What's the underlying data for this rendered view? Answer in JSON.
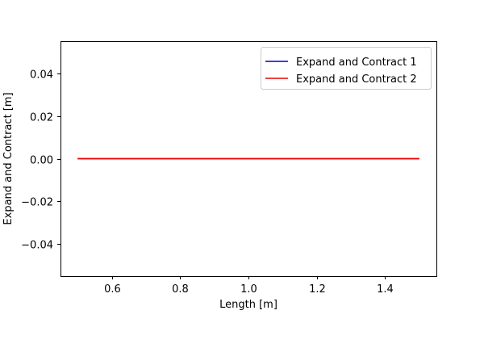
{
  "chart_data": {
    "type": "line",
    "title": "",
    "xlabel": "Length [m]",
    "ylabel": "Expand and Contract [m]",
    "xlim": [
      0.45,
      1.55
    ],
    "ylim": [
      -0.055,
      0.055
    ],
    "xticks": [
      0.6,
      0.8,
      1.0,
      1.2,
      1.4
    ],
    "xtick_labels": [
      "0.6",
      "0.8",
      "1.0",
      "1.2",
      "1.4"
    ],
    "yticks": [
      0.04,
      0.02,
      0.0,
      -0.02,
      -0.04
    ],
    "ytick_labels": [
      "0.04",
      "0.02",
      "0.00",
      "−0.02",
      "−0.04"
    ],
    "grid": false,
    "legend_position": "top-right",
    "series": [
      {
        "name": "Expand and Contract 1",
        "color": "#0000cc",
        "x": [
          0.5,
          1.5
        ],
        "y": [
          0.0,
          0.0
        ]
      },
      {
        "name": "Expand and Contract 2",
        "color": "#ee0000",
        "x": [
          0.5,
          1.5
        ],
        "y": [
          0.0,
          0.0
        ]
      }
    ]
  }
}
